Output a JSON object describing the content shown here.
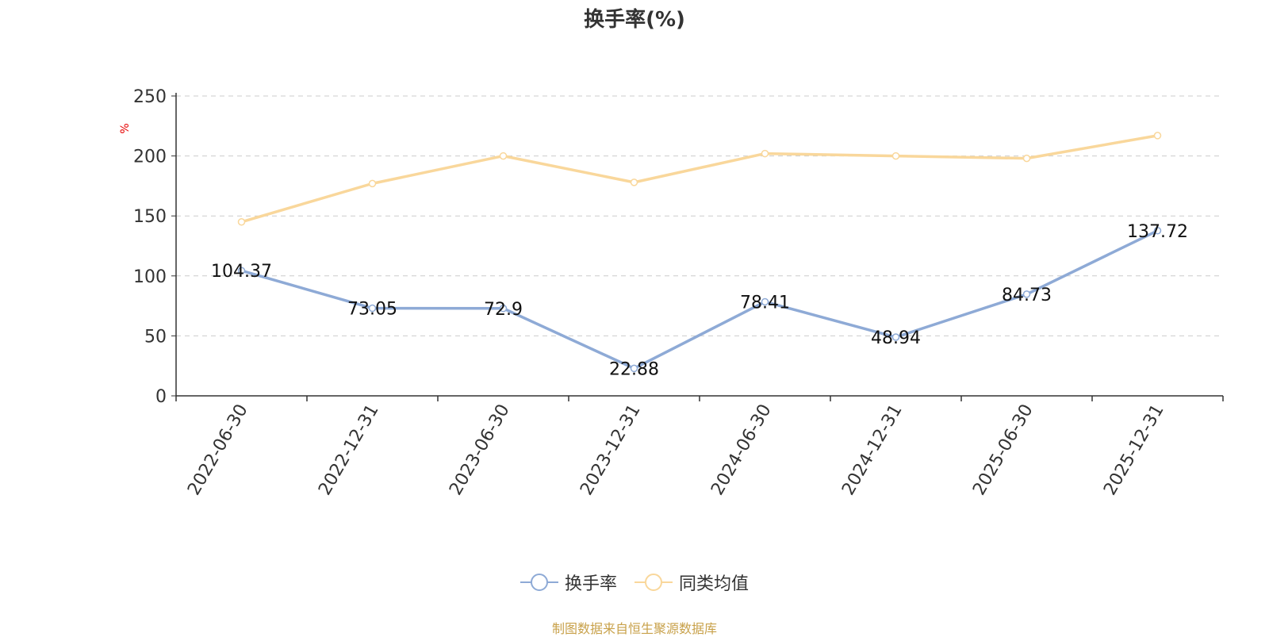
{
  "title": "换手率(%)",
  "source": "制图数据来自恒生聚源数据库",
  "chart_data": {
    "type": "line",
    "title": "换手率(%)",
    "ylabel": "%",
    "ylim": [
      0,
      250
    ],
    "yticks": [
      0,
      50,
      100,
      150,
      200,
      250
    ],
    "grid": true,
    "legend_position": "bottom",
    "categories": [
      "2022-06-30",
      "2022-12-31",
      "2023-06-30",
      "2023-12-31",
      "2024-06-30",
      "2024-12-31",
      "2025-06-30",
      "2025-12-31"
    ],
    "series": [
      {
        "name": "换手率",
        "color": "#8eaad6",
        "values": [
          104.37,
          73.05,
          72.9,
          22.88,
          78.41,
          48.94,
          84.73,
          137.72
        ],
        "labels": [
          "104.37",
          "73.05",
          "72.9",
          "22.88",
          "78.41",
          "48.94",
          "84.73",
          "137.72"
        ]
      },
      {
        "name": "同类均值",
        "color": "#f9d79b",
        "values": [
          145,
          177,
          200,
          178,
          202,
          200,
          198,
          217
        ]
      }
    ]
  }
}
